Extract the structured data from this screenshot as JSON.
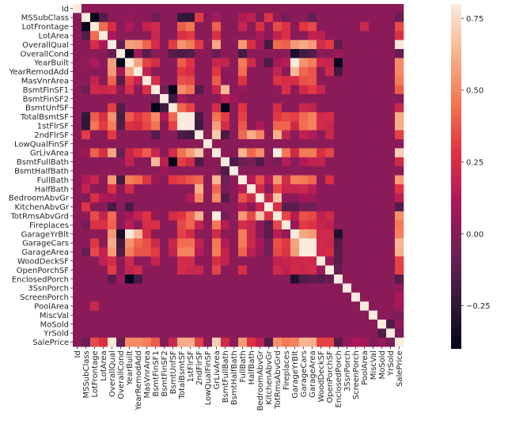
{
  "chart_data": {
    "type": "heatmap",
    "title": "",
    "xlabel": "",
    "ylabel": "",
    "variables": [
      "Id",
      "MSSubClass",
      "LotFrontage",
      "LotArea",
      "OverallQual",
      "OverallCond",
      "YearBuilt",
      "YearRemodAdd",
      "MasVnrArea",
      "BsmtFinSF1",
      "BsmtFinSF2",
      "BsmtUnfSF",
      "TotalBsmtSF",
      "1stFlrSF",
      "2ndFlrSF",
      "LowQualFinSF",
      "GrLivArea",
      "BsmtFullBath",
      "BsmtHalfBath",
      "FullBath",
      "HalfBath",
      "BedroomAbvGr",
      "KitchenAbvGr",
      "TotRmsAbvGrd",
      "Fireplaces",
      "GarageYrBlt",
      "GarageCars",
      "GarageArea",
      "WoodDeckSF",
      "OpenPorchSF",
      "EnclosedPorch",
      "3SsnPorch",
      "ScreenPorch",
      "PoolArea",
      "MiscVal",
      "MoSold",
      "YrSold",
      "SalePrice"
    ],
    "correlations": {
      "MSSubClass": {
        "LotFrontage": -0.39,
        "LotArea": -0.14,
        "YearBuilt": 0.03,
        "BsmtFinSF1": -0.07,
        "TotalBsmtSF": -0.24,
        "1stFlrSF": -0.25,
        "2ndFlrSF": 0.31,
        "GrLivArea": 0.07,
        "FullBath": 0.13,
        "HalfBath": 0.18,
        "BedroomAbvGr": -0.02,
        "KitchenAbvGr": 0.28,
        "TotRmsAbvGrd": 0.04,
        "Fireplaces": -0.05,
        "GarageArea": -0.1,
        "SalePrice": -0.08
      },
      "LotFrontage": {
        "LotArea": 0.43,
        "OverallQual": 0.25,
        "YearBuilt": 0.12,
        "MasVnrArea": 0.19,
        "BsmtFinSF1": 0.23,
        "TotalBsmtSF": 0.39,
        "1stFlrSF": 0.46,
        "GrLivArea": 0.4,
        "FullBath": 0.2,
        "BedroomAbvGr": 0.26,
        "TotRmsAbvGrd": 0.35,
        "Fireplaces": 0.27,
        "GarageCars": 0.29,
        "GarageArea": 0.34,
        "PoolArea": 0.21,
        "SalePrice": 0.35
      },
      "LotArea": {
        "OverallQual": 0.11,
        "BsmtFinSF1": 0.21,
        "TotalBsmtSF": 0.26,
        "1stFlrSF": 0.3,
        "GrLivArea": 0.26,
        "BedroomAbvGr": 0.12,
        "TotRmsAbvGrd": 0.19,
        "Fireplaces": 0.27,
        "GarageArea": 0.18,
        "WoodDeckSF": 0.17,
        "SalePrice": 0.26
      },
      "OverallQual": {
        "OverallCond": -0.09,
        "YearBuilt": 0.57,
        "YearRemodAdd": 0.55,
        "MasVnrArea": 0.41,
        "BsmtFinSF1": 0.24,
        "BsmtUnfSF": 0.31,
        "TotalBsmtSF": 0.54,
        "1stFlrSF": 0.48,
        "2ndFlrSF": 0.3,
        "GrLivArea": 0.59,
        "FullBath": 0.55,
        "HalfBath": 0.27,
        "BedroomAbvGr": 0.1,
        "KitchenAbvGr": -0.18,
        "TotRmsAbvGrd": 0.43,
        "Fireplaces": 0.4,
        "GarageYrBlt": 0.55,
        "GarageCars": 0.6,
        "GarageArea": 0.56,
        "WoodDeckSF": 0.24,
        "OpenPorchSF": 0.31,
        "EnclosedPorch": -0.11,
        "SalePrice": 0.79
      },
      "OverallCond": {
        "YearBuilt": -0.38,
        "YearRemodAdd": 0.07,
        "MasVnrArea": -0.13,
        "BsmtUnfSF": -0.14,
        "TotalBsmtSF": -0.17,
        "1stFlrSF": -0.14,
        "GrLivArea": -0.08,
        "FullBath": -0.19,
        "GarageYrBlt": -0.32,
        "GarageCars": -0.19,
        "GarageArea": -0.15,
        "EnclosedPorch": 0.07,
        "SalePrice": -0.08
      },
      "YearBuilt": {
        "YearRemodAdd": 0.59,
        "MasVnrArea": 0.32,
        "BsmtFinSF1": 0.25,
        "TotalBsmtSF": 0.39,
        "1stFlrSF": 0.28,
        "GrLivArea": 0.2,
        "BsmtFullBath": 0.19,
        "FullBath": 0.47,
        "HalfBath": 0.24,
        "KitchenAbvGr": -0.17,
        "TotRmsAbvGrd": 0.1,
        "Fireplaces": 0.15,
        "GarageYrBlt": 0.83,
        "GarageCars": 0.54,
        "GarageArea": 0.48,
        "WoodDeckSF": 0.22,
        "OpenPorchSF": 0.19,
        "EnclosedPorch": -0.39,
        "SalePrice": 0.52
      },
      "YearRemodAdd": {
        "MasVnrArea": 0.18,
        "TotalBsmtSF": 0.29,
        "1stFlrSF": 0.24,
        "GrLivArea": 0.29,
        "FullBath": 0.44,
        "TotRmsAbvGrd": 0.19,
        "GarageYrBlt": 0.64,
        "GarageCars": 0.42,
        "GarageArea": 0.37,
        "OpenPorchSF": 0.23,
        "EnclosedPorch": -0.19,
        "SalePrice": 0.51
      },
      "MasVnrArea": {
        "BsmtFinSF1": 0.26,
        "TotalBsmtSF": 0.36,
        "1stFlrSF": 0.34,
        "GrLivArea": 0.39,
        "FullBath": 0.28,
        "TotRmsAbvGrd": 0.28,
        "Fireplaces": 0.25,
        "GarageYrBlt": 0.25,
        "GarageCars": 0.36,
        "GarageArea": 0.37,
        "SalePrice": 0.48
      },
      "BsmtFinSF1": {
        "BsmtFinSF2": -0.05,
        "BsmtUnfSF": -0.5,
        "TotalBsmtSF": 0.52,
        "1stFlrSF": 0.45,
        "2ndFlrSF": -0.14,
        "GrLivArea": 0.21,
        "BsmtFullBath": 0.65,
        "FullBath": 0.06,
        "TotRmsAbvGrd": 0.04,
        "Fireplaces": 0.26,
        "GarageCars": 0.22,
        "GarageArea": 0.3,
        "WoodDeckSF": 0.2,
        "SalePrice": 0.39
      },
      "BsmtFinSF2": {
        "BsmtUnfSF": -0.21,
        "TotalBsmtSF": 0.1,
        "BsmtFullBath": 0.16,
        "BsmtHalfBath": 0.07,
        "SalePrice": -0.01
      },
      "BsmtUnfSF": {
        "TotalBsmtSF": 0.42,
        "1stFlrSF": 0.32,
        "GrLivArea": 0.24,
        "BsmtFullBath": -0.42,
        "FullBath": 0.29,
        "TotRmsAbvGrd": 0.25,
        "GarageCars": 0.21,
        "GarageArea": 0.18,
        "SalePrice": 0.21
      },
      "TotalBsmtSF": {
        "1stFlrSF": 0.82,
        "2ndFlrSF": -0.17,
        "GrLivArea": 0.45,
        "BsmtFullBath": 0.31,
        "FullBath": 0.32,
        "TotRmsAbvGrd": 0.29,
        "Fireplaces": 0.34,
        "GarageYrBlt": 0.32,
        "GarageCars": 0.43,
        "GarageArea": 0.49,
        "WoodDeckSF": 0.23,
        "OpenPorchSF": 0.25,
        "SalePrice": 0.61
      },
      "1stFlrSF": {
        "2ndFlrSF": -0.2,
        "GrLivArea": 0.57,
        "BsmtFullBath": 0.24,
        "FullBath": 0.38,
        "BedroomAbvGr": 0.13,
        "TotRmsAbvGrd": 0.41,
        "Fireplaces": 0.41,
        "GarageYrBlt": 0.23,
        "GarageCars": 0.44,
        "GarageArea": 0.49,
        "WoodDeckSF": 0.24,
        "OpenPorchSF": 0.21,
        "SalePrice": 0.61
      },
      "2ndFlrSF": {
        "GrLivArea": 0.69,
        "BsmtFullBath": -0.17,
        "FullBath": 0.42,
        "HalfBath": 0.61,
        "BedroomAbvGr": 0.5,
        "TotRmsAbvGrd": 0.62,
        "Fireplaces": 0.19,
        "GarageCars": 0.18,
        "GarageArea": 0.14,
        "OpenPorchSF": 0.21,
        "SalePrice": 0.32
      },
      "GrLivArea": {
        "FullBath": 0.63,
        "HalfBath": 0.42,
        "BedroomAbvGr": 0.52,
        "TotRmsAbvGrd": 0.83,
        "Fireplaces": 0.46,
        "GarageYrBlt": 0.23,
        "GarageCars": 0.47,
        "GarageArea": 0.47,
        "WoodDeckSF": 0.25,
        "OpenPorchSF": 0.33,
        "SalePrice": 0.71
      },
      "BsmtFullBath": {
        "BsmtHalfBath": -0.15,
        "FullBath": -0.06,
        "HalfBath": -0.03,
        "BedroomAbvGr": -0.15,
        "TotRmsAbvGrd": -0.05,
        "Fireplaces": 0.14,
        "GarageCars": 0.13,
        "GarageArea": 0.18,
        "WoodDeckSF": 0.18,
        "SalePrice": 0.23
      },
      "FullBath": {
        "HalfBath": 0.14,
        "BedroomAbvGr": 0.36,
        "KitchenAbvGr": 0.13,
        "TotRmsAbvGrd": 0.55,
        "Fireplaces": 0.24,
        "GarageYrBlt": 0.48,
        "GarageCars": 0.47,
        "GarageArea": 0.41,
        "OpenPorchSF": 0.26,
        "SalePrice": 0.56
      },
      "HalfBath": {
        "BedroomAbvGr": 0.23,
        "TotRmsAbvGrd": 0.34,
        "Fireplaces": 0.2,
        "GarageYrBlt": 0.2,
        "GarageCars": 0.22,
        "GarageArea": 0.16,
        "SalePrice": 0.28
      },
      "BedroomAbvGr": {
        "KitchenAbvGr": 0.2,
        "TotRmsAbvGrd": 0.68,
        "GarageCars": 0.09,
        "GarageArea": 0.07,
        "SalePrice": 0.17
      },
      "KitchenAbvGr": {
        "TotRmsAbvGrd": 0.26,
        "Fireplaces": -0.12,
        "GarageYrBlt": -0.12,
        "GarageCars": -0.05,
        "GarageArea": -0.06,
        "SalePrice": -0.14
      },
      "TotRmsAbvGrd": {
        "Fireplaces": 0.33,
        "GarageYrBlt": 0.15,
        "GarageCars": 0.36,
        "GarageArea": 0.34,
        "WoodDeckSF": 0.17,
        "OpenPorchSF": 0.23,
        "SalePrice": 0.53
      },
      "Fireplaces": {
        "GarageYrBlt": 0.05,
        "GarageCars": 0.3,
        "GarageArea": 0.27,
        "WoodDeckSF": 0.2,
        "OpenPorchSF": 0.17,
        "SalePrice": 0.47
      },
      "GarageYrBlt": {
        "GarageCars": 0.59,
        "GarageArea": 0.56,
        "WoodDeckSF": 0.22,
        "OpenPorchSF": 0.23,
        "EnclosedPorch": -0.3,
        "SalePrice": 0.49
      },
      "GarageCars": {
        "GarageArea": 0.88,
        "WoodDeckSF": 0.23,
        "OpenPorchSF": 0.21,
        "EnclosedPorch": -0.15,
        "SalePrice": 0.64
      },
      "GarageArea": {
        "WoodDeckSF": 0.22,
        "OpenPorchSF": 0.24,
        "EnclosedPorch": -0.12,
        "SalePrice": 0.62
      },
      "WoodDeckSF": {
        "OpenPorchSF": 0.06,
        "EnclosedPorch": -0.13,
        "SalePrice": 0.32
      },
      "OpenPorchSF": {
        "EnclosedPorch": -0.09,
        "SalePrice": 0.32
      },
      "EnclosedPorch": {
        "SalePrice": -0.13
      },
      "3SsnPorch": {
        "SalePrice": 0.04
      },
      "ScreenPorch": {
        "SalePrice": 0.11
      },
      "PoolArea": {
        "SalePrice": 0.09
      },
      "MiscVal": {
        "SalePrice": -0.02
      },
      "MoSold": {
        "YrSold": -0.15,
        "SalePrice": 0.05
      },
      "YrSold": {
        "SalePrice": -0.03
      }
    },
    "diagonal": 1.0,
    "colorbar": {
      "range": [
        -0.4,
        0.8
      ],
      "ticks": [
        -0.25,
        0.0,
        0.25,
        0.5,
        0.75
      ],
      "tick_labels": [
        "−0.25",
        "0.00",
        "0.25",
        "0.50",
        "0.75"
      ],
      "colormap": "rocket",
      "stops": [
        "#03051a",
        "#36193e",
        "#701f57",
        "#ad1759",
        "#e13342",
        "#f37651",
        "#f6b48f",
        "#faebdd"
      ]
    }
  }
}
